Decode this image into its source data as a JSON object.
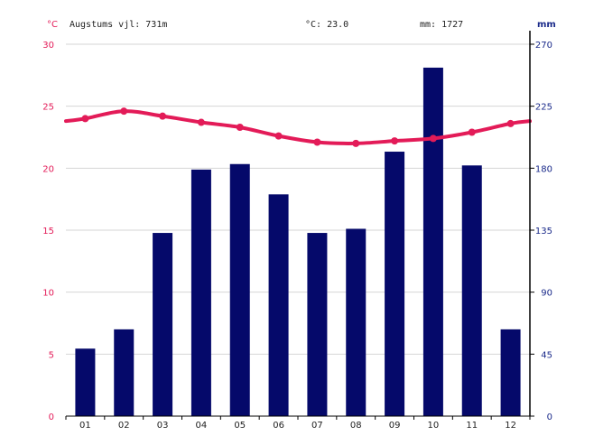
{
  "header": {
    "left_unit": "°C",
    "right_unit": "mm",
    "altitude": "Augstums vjl: 731m",
    "temp_avg": "°C: 23.0",
    "precip_total": "mm: 1727"
  },
  "colors": {
    "temperature": "#e31b58",
    "precipitation": "#05096a",
    "right_axis": "#1a2a8a",
    "grid": "#d6d6d6"
  },
  "chart_data": {
    "type": "bar",
    "categories": [
      "01",
      "02",
      "03",
      "04",
      "05",
      "06",
      "07",
      "08",
      "09",
      "10",
      "11",
      "12"
    ],
    "series": [
      {
        "type": "bar",
        "axis": "right",
        "values": [
          49,
          63,
          133,
          179,
          183,
          161,
          133,
          136,
          192,
          253,
          182,
          63
        ]
      },
      {
        "type": "line",
        "axis": "left",
        "values": [
          24.0,
          24.6,
          24.2,
          23.7,
          23.3,
          22.6,
          22.1,
          22.0,
          22.2,
          22.4,
          22.9,
          23.6
        ]
      }
    ],
    "left_axis": {
      "ticks": [
        0,
        5,
        10,
        15,
        20,
        25,
        30
      ],
      "ylim": [
        0,
        30
      ]
    },
    "right_axis": {
      "ticks": [
        0,
        45,
        90,
        135,
        180,
        225,
        270
      ],
      "ylim": [
        0,
        270
      ]
    },
    "grid": true
  }
}
